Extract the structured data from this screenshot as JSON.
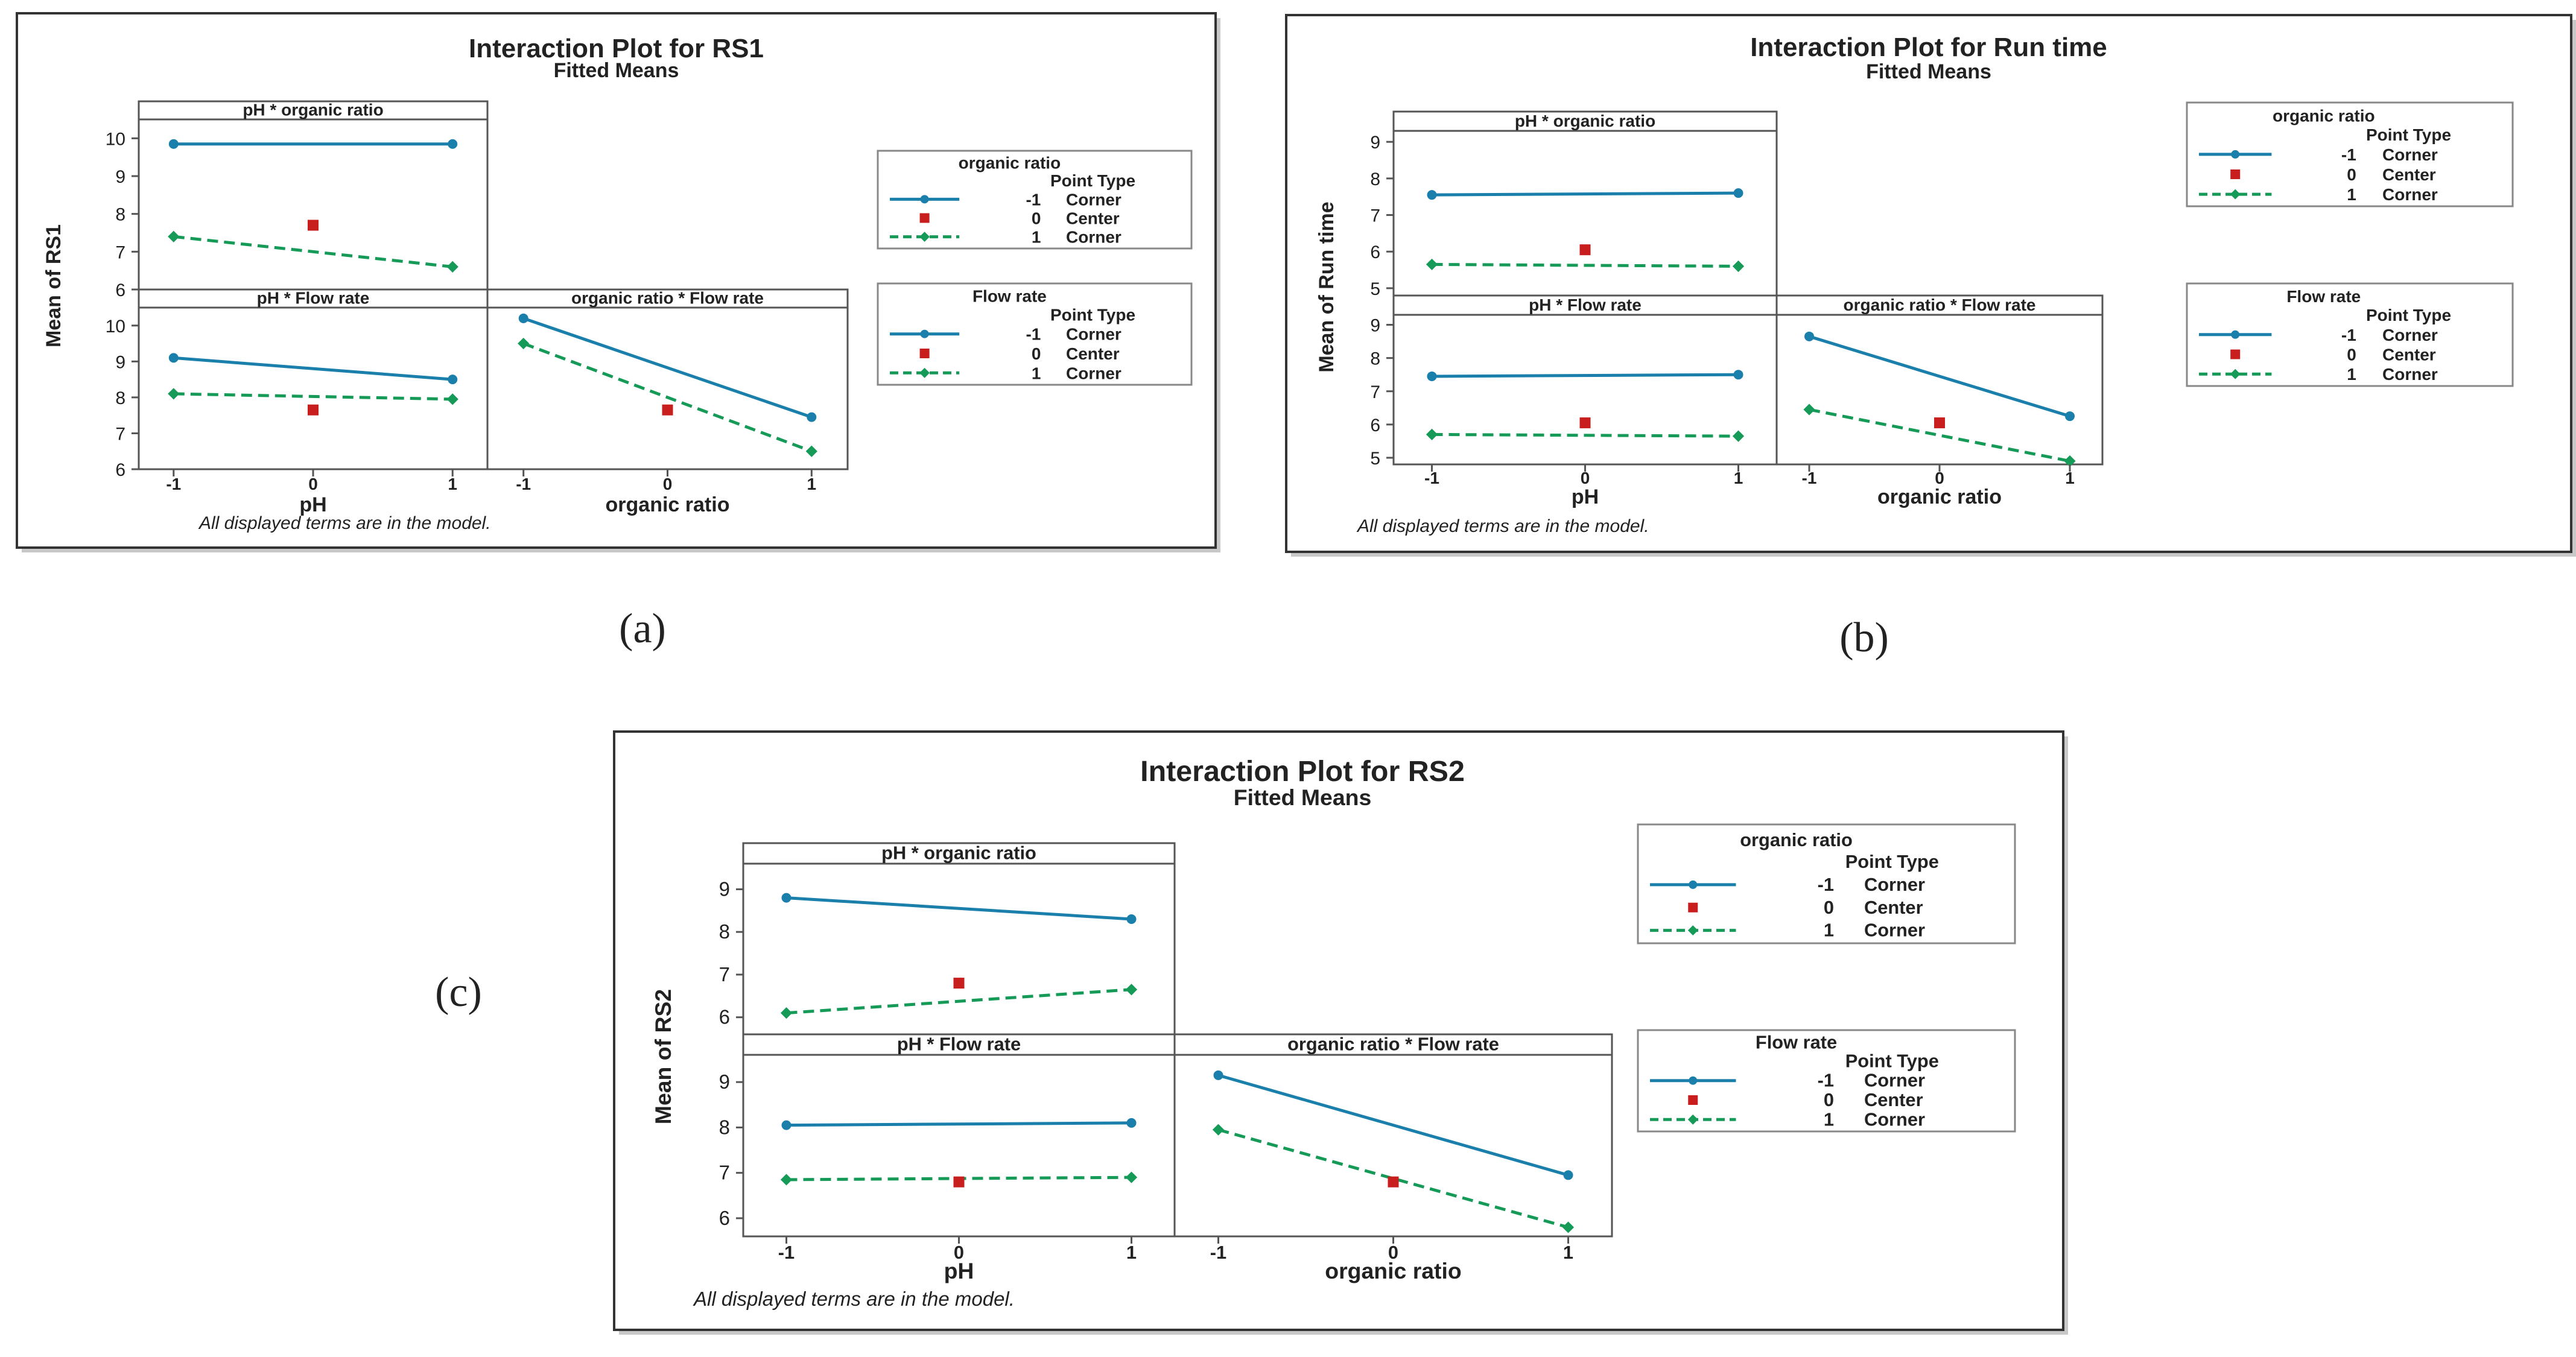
{
  "page": {
    "background": "#ffffff"
  },
  "palette": {
    "blue": "#1b7fab",
    "green": "#169a58",
    "red": "#c81e1e",
    "frame": "#555555",
    "text": "#222222"
  },
  "legend_common": {
    "point_type": "Point Type",
    "rows": [
      {
        "level": "-1",
        "type": "Corner",
        "style": "blue-solid"
      },
      {
        "level": "0",
        "type": "Center",
        "style": "red-square"
      },
      {
        "level": "1",
        "type": "Corner",
        "style": "green-dashed"
      }
    ]
  },
  "footnote": "All displayed terms are in the model.",
  "chart_data": [
    {
      "type": "line",
      "id": "a",
      "subfigure_label": "(a)",
      "title": "Interaction Plot for RS1",
      "subtitle": "Fitted Means",
      "ylabel": "Mean of RS1",
      "ylim": [
        6,
        10.5
      ],
      "yticks": [
        "6",
        "7",
        "8",
        "9",
        "10"
      ],
      "xticks": [
        "-1",
        "0",
        "1"
      ],
      "xlabels": [
        "pH",
        "organic ratio"
      ],
      "panels": {
        "ph_organic": {
          "title": "pH * organic ratio",
          "series": [
            {
              "name": "-1 Corner",
              "values": [
                9.85,
                9.85
              ]
            },
            {
              "name": "1 Corner",
              "values": [
                7.4,
                6.6
              ]
            }
          ],
          "center": 7.7
        },
        "ph_flow": {
          "title": "pH * Flow rate",
          "series": [
            {
              "name": "-1 Corner",
              "values": [
                9.1,
                8.5
              ]
            },
            {
              "name": "1 Corner",
              "values": [
                8.1,
                7.95
              ]
            }
          ],
          "center": 7.65
        },
        "org_flow": {
          "title": "organic ratio * Flow rate",
          "series": [
            {
              "name": "-1 Corner",
              "values": [
                10.2,
                7.45
              ]
            },
            {
              "name": "1 Corner",
              "values": [
                9.5,
                6.5
              ]
            }
          ],
          "center": 7.65
        }
      },
      "legends": [
        {
          "title": "organic ratio"
        },
        {
          "title": "Flow rate"
        }
      ]
    },
    {
      "type": "line",
      "id": "b",
      "subfigure_label": "(b)",
      "title": "Interaction Plot for Run time",
      "subtitle": "Fitted Means",
      "ylabel": "Mean of Run time",
      "ylim": [
        4.8,
        9.3
      ],
      "yticks": [
        "5",
        "6",
        "7",
        "8",
        "9"
      ],
      "xticks": [
        "-1",
        "0",
        "1"
      ],
      "xlabels": [
        "pH",
        "organic ratio"
      ],
      "panels": {
        "ph_organic": {
          "title": "pH * organic ratio",
          "series": [
            {
              "name": "-1 Corner",
              "values": [
                7.55,
                7.6
              ]
            },
            {
              "name": "1 Corner",
              "values": [
                5.65,
                5.6
              ]
            }
          ],
          "center": 6.05
        },
        "ph_flow": {
          "title": "pH * Flow rate",
          "series": [
            {
              "name": "-1 Corner",
              "values": [
                7.45,
                7.5
              ]
            },
            {
              "name": "1 Corner",
              "values": [
                5.7,
                5.65
              ]
            }
          ],
          "center": 6.05
        },
        "org_flow": {
          "title": "organic ratio * Flow rate",
          "series": [
            {
              "name": "-1 Corner",
              "values": [
                8.65,
                6.25
              ]
            },
            {
              "name": "1 Corner",
              "values": [
                6.45,
                4.9
              ]
            }
          ],
          "center": 6.05
        }
      },
      "legends": [
        {
          "title": "organic ratio"
        },
        {
          "title": "Flow rate"
        }
      ]
    },
    {
      "type": "line",
      "id": "c",
      "subfigure_label": "(c)",
      "title": "Interaction Plot for RS2",
      "subtitle": "Fitted Means",
      "ylabel": "Mean of RS2",
      "ylim": [
        5.6,
        9.6
      ],
      "yticks": [
        "6",
        "7",
        "8",
        "9"
      ],
      "xticks": [
        "-1",
        "0",
        "1"
      ],
      "xlabels": [
        "pH",
        "organic ratio"
      ],
      "panels": {
        "ph_organic": {
          "title": "pH * organic ratio",
          "series": [
            {
              "name": "-1 Corner",
              "values": [
                8.8,
                8.3
              ]
            },
            {
              "name": "1 Corner",
              "values": [
                6.1,
                6.65
              ]
            }
          ],
          "center": 6.8
        },
        "ph_flow": {
          "title": "pH * Flow rate",
          "series": [
            {
              "name": "-1 Corner",
              "values": [
                8.05,
                8.1
              ]
            },
            {
              "name": "1 Corner",
              "values": [
                6.85,
                6.9
              ]
            }
          ],
          "center": 6.8
        },
        "org_flow": {
          "title": "organic ratio * Flow rate",
          "series": [
            {
              "name": "-1 Corner",
              "values": [
                9.15,
                6.95
              ]
            },
            {
              "name": "1 Corner",
              "values": [
                7.95,
                5.8
              ]
            }
          ],
          "center": 6.8
        }
      },
      "legends": [
        {
          "title": "organic ratio"
        },
        {
          "title": "Flow rate"
        }
      ]
    }
  ]
}
